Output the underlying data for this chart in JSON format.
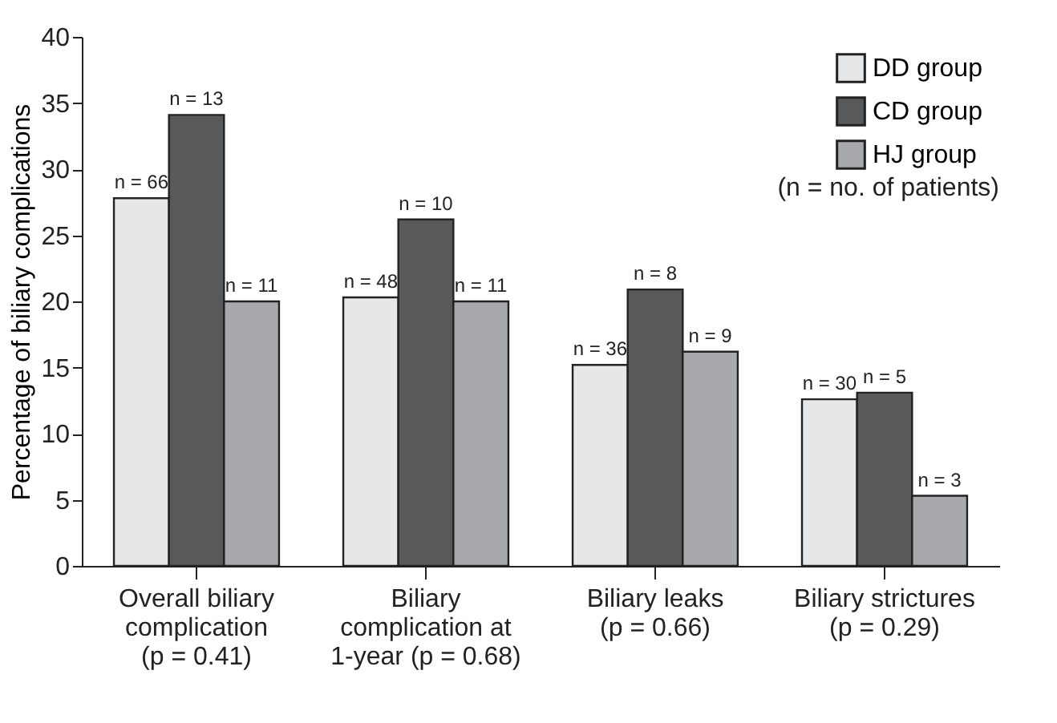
{
  "chart_data": {
    "type": "bar",
    "ylabel": "Percentage of biliary complications",
    "categories": [
      "Overall biliary\ncomplication\n(p = 0.41)",
      "Biliary\ncomplication at\n1-year (p = 0.68)",
      "Biliary leaks\n(p = 0.66)",
      "Biliary strictures\n(p = 0.29)"
    ],
    "series": [
      {
        "name": "DD group",
        "color": "#e6e7e8",
        "values": [
          27.8,
          20.3,
          15.2,
          12.6
        ]
      },
      {
        "name": "CD group",
        "color": "#58595b",
        "values": [
          34.1,
          26.2,
          20.9,
          13.1
        ]
      },
      {
        "name": "HJ group",
        "color": "#a7a9ac",
        "values": [
          20.0,
          20.0,
          16.2,
          5.3
        ]
      }
    ],
    "ylim": [
      0,
      40
    ],
    "yticks": [
      0,
      5,
      10,
      15,
      20,
      25,
      30,
      35,
      40
    ],
    "legend": "top right",
    "grid": false,
    "annotations": [
      "(n = no. of patients)",
      "n = 66",
      "n = 13",
      "n = 11",
      "n = 48",
      "n = 10",
      "n = 11",
      "n = 36",
      "n = 8",
      "n = 9",
      "n = 30",
      "n = 5",
      "n = 3"
    ]
  }
}
